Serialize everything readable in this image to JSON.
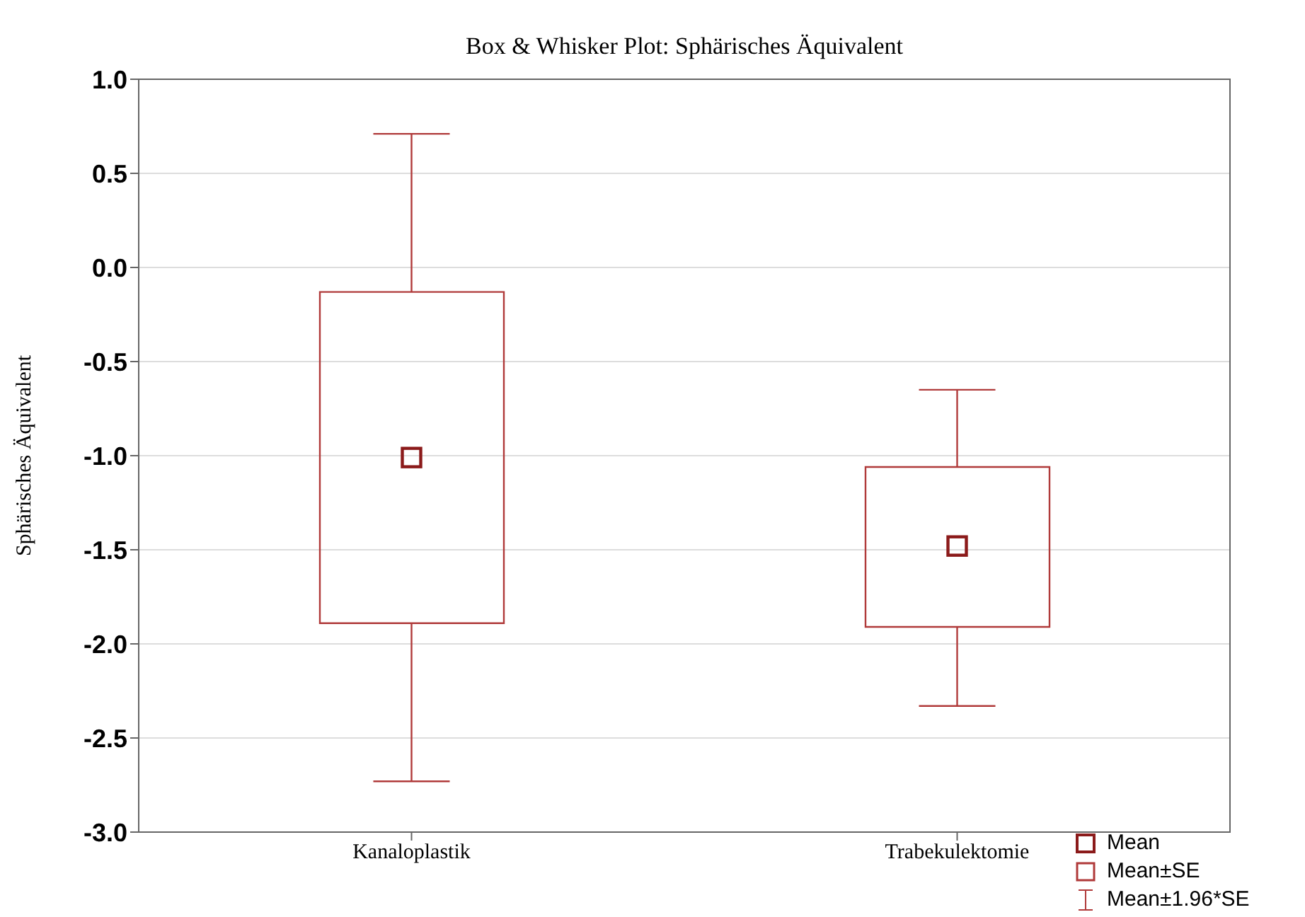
{
  "chart_data": {
    "type": "box",
    "title": "Box & Whisker Plot: Sphärisches Äquivalent",
    "ylabel": "Sphärisches Äquivalent",
    "categories": [
      "Kanaloplastik",
      "Trabekulektomie"
    ],
    "series": [
      {
        "name": "Mean±SE",
        "color": "#b03a3a",
        "boxes": [
          {
            "low": -2.73,
            "q1": -1.89,
            "median": -1.01,
            "q3": -0.13,
            "high": 0.71
          },
          {
            "low": -2.33,
            "q1": -1.91,
            "median": -1.48,
            "q3": -1.06,
            "high": -0.65
          }
        ]
      }
    ],
    "annotations": [
      "Mean",
      "Mean±1.96*SE"
    ],
    "ylim": [
      -3,
      1
    ],
    "yticks": [
      {
        "value": -3,
        "label": "-3.0"
      },
      {
        "value": -2.5,
        "label": "-2.5"
      },
      {
        "value": -2,
        "label": "-2.0"
      },
      {
        "value": -1.5,
        "label": "-1.5"
      },
      {
        "value": -1,
        "label": "-1.0"
      },
      {
        "value": -0.5,
        "label": "-0.5"
      },
      {
        "value": 0,
        "label": "0.0"
      },
      {
        "value": 0.5,
        "label": "0.5"
      },
      {
        "value": 1,
        "label": "1.0"
      }
    ],
    "grid": "y",
    "legend": "bottom right",
    "marker": "square"
  }
}
